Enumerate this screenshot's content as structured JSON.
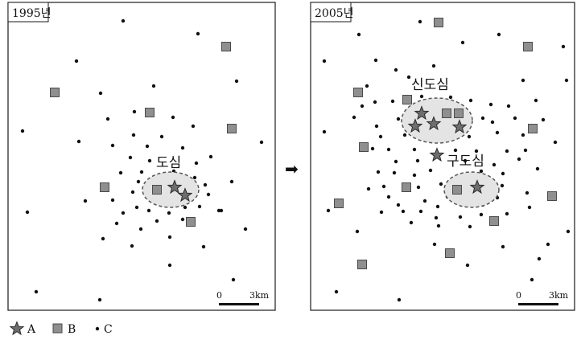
{
  "panels": [
    {
      "year": "1995년",
      "centers": [
        {
          "label": "도심"
        }
      ],
      "scale": {
        "zero": "0",
        "distance": "3km"
      }
    },
    {
      "year": "2005년",
      "centers": [
        {
          "label": "신도심"
        },
        {
          "label": "구도심"
        }
      ],
      "scale": {
        "zero": "0",
        "distance": "3km"
      }
    }
  ],
  "arrow": "➡",
  "legend": [
    {
      "symbol": "star",
      "label": "A"
    },
    {
      "symbol": "square",
      "label": "B"
    },
    {
      "symbol": "dot",
      "label": "C"
    }
  ],
  "colors": {
    "star": "#6e6e6e",
    "square": "#8f8f8f",
    "dot": "#111111",
    "center_fill": "#e4e4e4"
  }
}
